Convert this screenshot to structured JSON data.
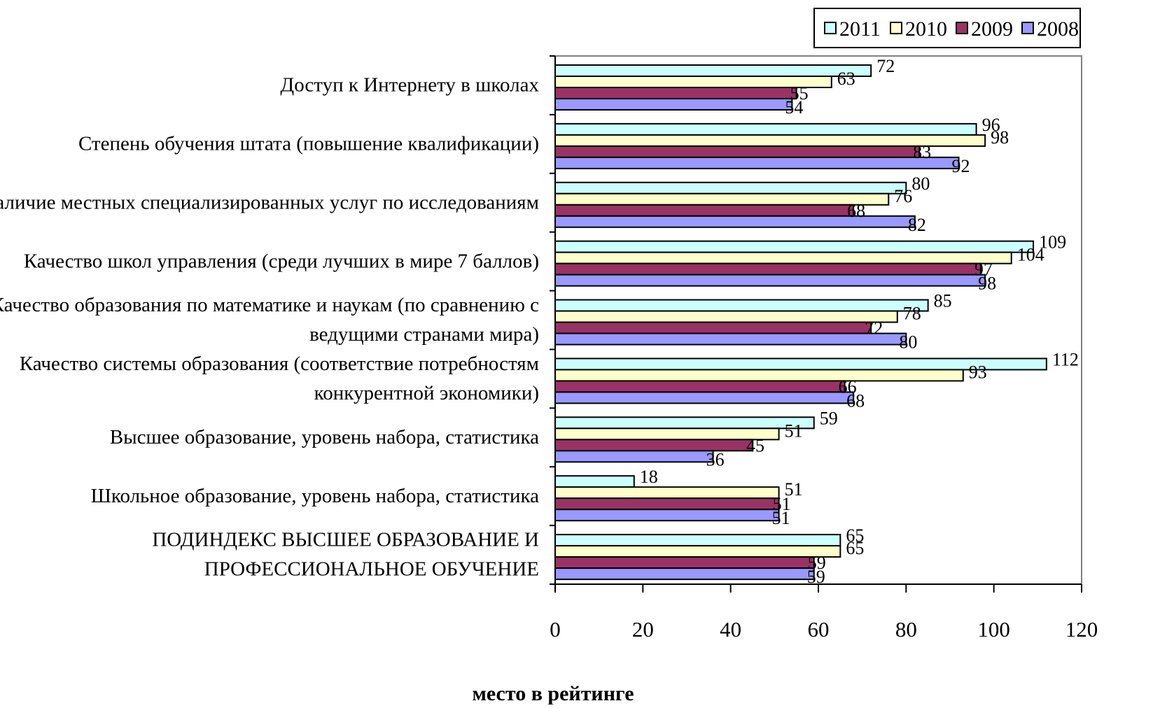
{
  "chart_data": {
    "type": "bar",
    "orientation": "horizontal",
    "title": "",
    "xlabel": "место в рейтинге",
    "ylabel": "",
    "xlim": [
      0,
      120
    ],
    "x_ticks": [
      0,
      20,
      40,
      60,
      80,
      100,
      120
    ],
    "grid": false,
    "legend_position": "top-right",
    "categories": [
      [
        "Доступ к Интернету в школах"
      ],
      [
        "Степень обучения штата (повышение квалификации)"
      ],
      [
        "Наличие местных специализированных услуг по исследованиям"
      ],
      [
        "Качество школ управления (среди лучших в мире 7 баллов)"
      ],
      [
        "Качество образования по математике и наукам (по сравнению с",
        "ведущими странами мира)"
      ],
      [
        "Качество системы образования (соответствие потребностям",
        "конкурентной экономики)"
      ],
      [
        "Высшее образование, уровень набора, статистика"
      ],
      [
        "Школьное образование, уровень набора, статистика"
      ],
      [
        "ПОДИНДЕКС ВЫСШЕЕ ОБРАЗОВАНИЕ И",
        "ПРОФЕССИОНАЛЬНОЕ ОБУЧЕНИЕ"
      ]
    ],
    "series": [
      {
        "name": "2011",
        "color": "#ccffff",
        "values": [
          72,
          96,
          80,
          109,
          85,
          112,
          59,
          18,
          65
        ]
      },
      {
        "name": "2010",
        "color": "#ffffcc",
        "values": [
          63,
          98,
          76,
          104,
          78,
          93,
          51,
          51,
          65
        ]
      },
      {
        "name": "2009",
        "color": "#993366",
        "values": [
          55,
          83,
          68,
          97,
          72,
          66,
          45,
          51,
          59
        ]
      },
      {
        "name": "2008",
        "color": "#9999ff",
        "values": [
          54,
          92,
          82,
          98,
          80,
          68,
          36,
          51,
          59
        ]
      }
    ],
    "legend_order": [
      "2011",
      "2010",
      "2009",
      "2008"
    ]
  }
}
